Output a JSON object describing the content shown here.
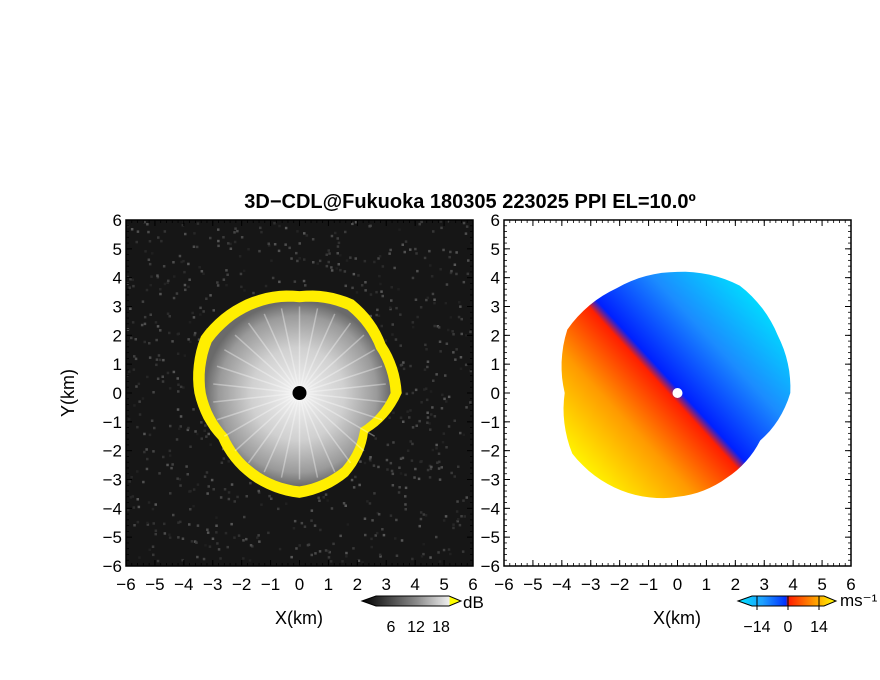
{
  "title": "3D−CDL@Fukuoka 180305 223025 PPI EL=10.0º",
  "chart_data": [
    {
      "type": "heatmap",
      "quantity": "SNR",
      "xlabel": "X(km)",
      "ylabel": "Y(km)",
      "xlim": [
        -6,
        6
      ],
      "ylim": [
        -6,
        6
      ],
      "xticks": [
        "−6",
        "−5",
        "−4",
        "−3",
        "−2",
        "−1",
        "0",
        "1",
        "2",
        "3",
        "4",
        "5",
        "6"
      ],
      "yticks": [
        "6",
        "5",
        "4",
        "3",
        "2",
        "1",
        "0",
        "−1",
        "−2",
        "−3",
        "−4",
        "−5",
        "−6"
      ],
      "echo_radius_km_by_azimuth_deg": [
        {
          "az": 0,
          "r": 3.5
        },
        {
          "az": 30,
          "r": 3.7
        },
        {
          "az": 60,
          "r": 3.4
        },
        {
          "az": 90,
          "r": 3.5
        },
        {
          "az": 120,
          "r": 2.7
        },
        {
          "az": 150,
          "r": 3.3
        },
        {
          "az": 180,
          "r": 3.6
        },
        {
          "az": 210,
          "r": 3.4
        },
        {
          "az": 240,
          "r": 3.2
        },
        {
          "az": 270,
          "r": 3.6
        },
        {
          "az": 300,
          "r": 3.9
        },
        {
          "az": 330,
          "r": 3.7
        }
      ],
      "colorbar": {
        "unit": "dB",
        "ticks": [
          "6",
          "12",
          "18"
        ],
        "colors": [
          "#000000",
          "#3a3a3a",
          "#7a7a7a",
          "#b5b5b5",
          "#e6e6e6",
          "#ffff00"
        ]
      }
    },
    {
      "type": "heatmap",
      "quantity": "Doppler velocity",
      "xlabel": "X(km)",
      "xlim": [
        -6,
        6
      ],
      "ylim": [
        -6,
        6
      ],
      "xticks": [
        "−6",
        "−5",
        "−4",
        "−3",
        "−2",
        "−1",
        "0",
        "1",
        "2",
        "3",
        "4",
        "5",
        "6"
      ],
      "yticks": [
        "6",
        "5",
        "4",
        "3",
        "2",
        "1",
        "0",
        "−1",
        "−2",
        "−3",
        "−4",
        "−5",
        "−6"
      ],
      "echo_radius_km_by_azimuth_deg": [
        {
          "az": 0,
          "r": 4.2
        },
        {
          "az": 30,
          "r": 4.3
        },
        {
          "az": 60,
          "r": 4.0
        },
        {
          "az": 90,
          "r": 3.9
        },
        {
          "az": 120,
          "r": 3.3
        },
        {
          "az": 150,
          "r": 3.4
        },
        {
          "az": 180,
          "r": 3.6
        },
        {
          "az": 210,
          "r": 3.9
        },
        {
          "az": 240,
          "r": 4.2
        },
        {
          "az": 270,
          "r": 3.9
        },
        {
          "az": 300,
          "r": 4.4
        },
        {
          "az": 330,
          "r": 4.2
        }
      ],
      "colorbar": {
        "unit": "ms⁻¹",
        "ticks": [
          "−14",
          "0",
          "14"
        ],
        "colors": [
          "#00e5ff",
          "#1ea0ff",
          "#0030ff",
          "#ff1a00",
          "#ff8c00",
          "#ffff00"
        ]
      }
    }
  ]
}
